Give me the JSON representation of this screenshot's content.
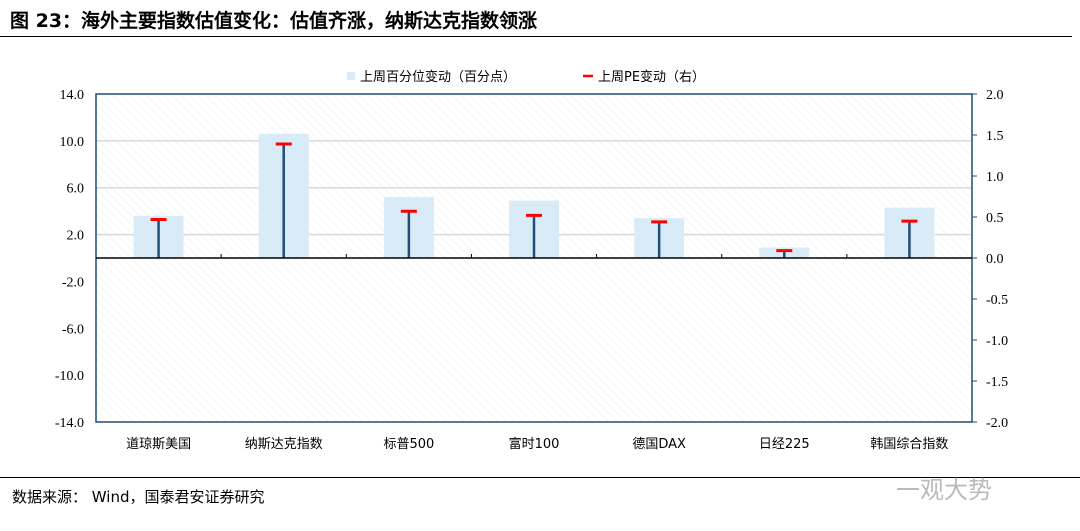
{
  "title": "图 23：海外主要指数估值变化：估值齐涨，纳斯达克指数领涨",
  "source": "数据来源： Wind，国泰君安证券研究",
  "watermark": "一观大势",
  "chart_data": {
    "type": "bar",
    "categories": [
      "道琼斯美国",
      "纳斯达克指数",
      "标普500",
      "富时100",
      "德国DAX",
      "日经225",
      "韩国综合指数"
    ],
    "series": [
      {
        "name": "上周百分位变动（百分点）",
        "axis": "left",
        "kind": "bar",
        "color": "#DAEBF8",
        "values": [
          3.6,
          10.6,
          5.2,
          4.9,
          3.4,
          0.9,
          4.3
        ]
      },
      {
        "name": "上周PE变动（右）",
        "axis": "right",
        "kind": "marker-stem",
        "color": "#FF0000",
        "stem_color": "#1F4E79",
        "values": [
          0.47,
          1.39,
          0.57,
          0.52,
          0.44,
          0.09,
          0.45
        ]
      }
    ],
    "left_axis": {
      "ylim": [
        -14,
        14
      ],
      "ticks": [
        "14.0",
        "10.0",
        "6.0",
        "2.0",
        "-2.0",
        "-6.0",
        "-10.0",
        "-14.0"
      ]
    },
    "right_axis": {
      "ylim": [
        -2,
        2
      ],
      "ticks": [
        "2.0",
        "1.5",
        "1.0",
        "0.5",
        "0.0",
        "-0.5",
        "-1.0",
        "-1.5",
        "-2.0"
      ]
    },
    "legend_position": "top",
    "grid": true
  }
}
